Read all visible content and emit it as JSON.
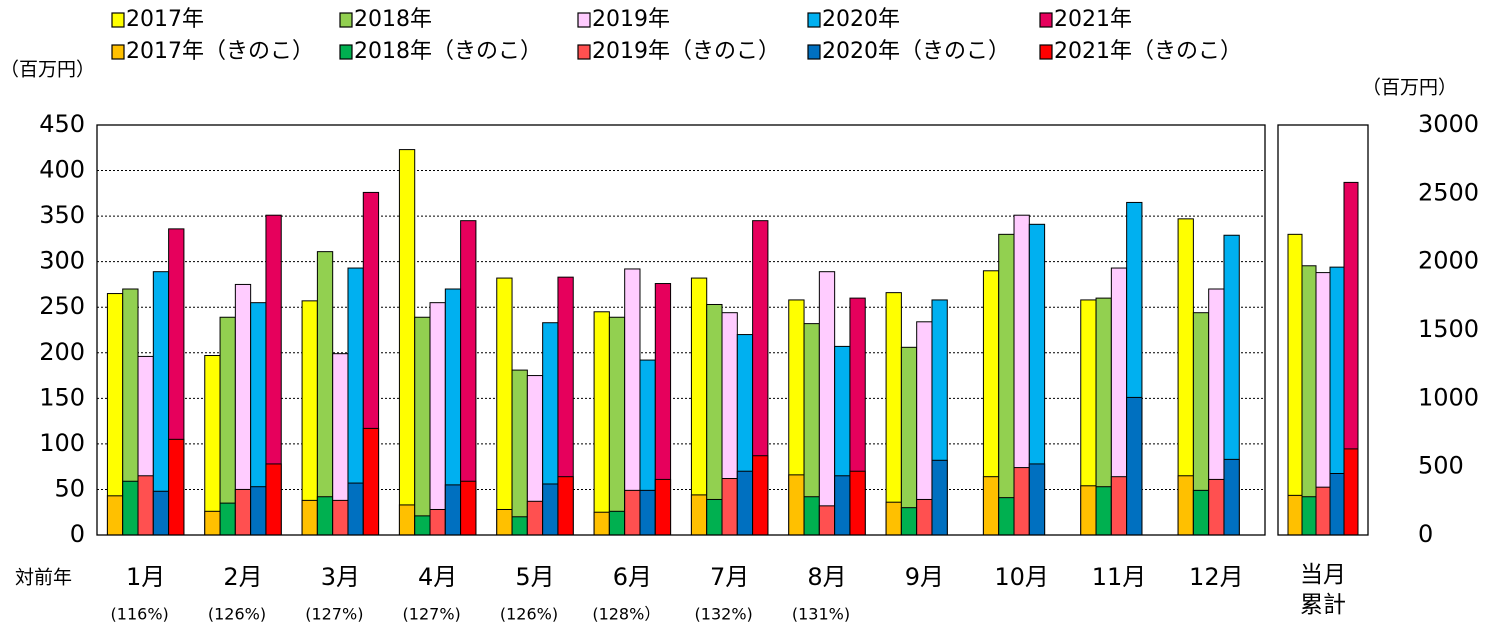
{
  "chart_data": [
    {
      "type": "bar",
      "y_unit": "（百万円）",
      "categories": [
        "1月",
        "2月",
        "3月",
        "4月",
        "5月",
        "6月",
        "7月",
        "8月",
        "9月",
        "10月",
        "11月",
        "12月"
      ],
      "series": [
        {
          "name": "2017年",
          "color": "#ffff00",
          "values": [
            265,
            197,
            257,
            423,
            282,
            245,
            282,
            258,
            266,
            290,
            258,
            347
          ]
        },
        {
          "name": "2018年",
          "color": "#92d050",
          "values": [
            270,
            239,
            311,
            239,
            181,
            239,
            253,
            232,
            206,
            330,
            260,
            244
          ]
        },
        {
          "name": "2019年",
          "color": "#ffccff",
          "values": [
            196,
            275,
            199,
            255,
            175,
            292,
            244,
            289,
            234,
            351,
            293,
            270
          ]
        },
        {
          "name": "2020年",
          "color": "#00b0f0",
          "values": [
            289,
            255,
            293,
            270,
            233,
            192,
            220,
            207,
            258,
            341,
            365,
            329
          ]
        },
        {
          "name": "2021年",
          "color": "#e6005c",
          "values": [
            336,
            351,
            376,
            345,
            283,
            276,
            345,
            260,
            null,
            null,
            null,
            null
          ]
        },
        {
          "name": "2017年（きのこ）",
          "color": "#ffc000",
          "values": [
            43,
            26,
            38,
            33,
            28,
            25,
            44,
            66,
            36,
            64,
            54,
            65
          ]
        },
        {
          "name": "2018年（きのこ）",
          "color": "#00b050",
          "values": [
            59,
            35,
            42,
            21,
            20,
            26,
            39,
            42,
            30,
            41,
            53,
            49
          ]
        },
        {
          "name": "2019年（きのこ）",
          "color": "#ff5050",
          "values": [
            65,
            50,
            38,
            28,
            37,
            49,
            62,
            32,
            39,
            74,
            64,
            61
          ]
        },
        {
          "name": "2020年（きのこ）",
          "color": "#0070c0",
          "values": [
            48,
            53,
            57,
            55,
            56,
            49,
            70,
            65,
            82,
            78,
            151,
            83
          ]
        },
        {
          "name": "2021年（きのこ）",
          "color": "#ff0000",
          "values": [
            105,
            78,
            117,
            59,
            64,
            61,
            87,
            70,
            null,
            null,
            null,
            null
          ]
        }
      ],
      "ylim": [
        0,
        450
      ],
      "yticks": [
        0,
        50,
        100,
        150,
        200,
        250,
        300,
        350,
        400,
        450
      ],
      "grid": true,
      "yoy_title": "対前年",
      "yoy_labels": [
        "(116%)",
        "(126%)",
        "(127%)",
        "(127%)",
        "(126%)",
        "(128%）",
        "(132%)",
        "(131%)"
      ]
    },
    {
      "type": "bar",
      "y_unit": "（百万円）",
      "categories": [
        "当月累計"
      ],
      "series": [
        {
          "name": "2017年",
          "color": "#ffff00",
          "values": [
            2200
          ]
        },
        {
          "name": "2018年",
          "color": "#92d050",
          "values": [
            1970
          ]
        },
        {
          "name": "2019年",
          "color": "#ffccff",
          "values": [
            1920
          ]
        },
        {
          "name": "2020年",
          "color": "#00b0f0",
          "values": [
            1960
          ]
        },
        {
          "name": "2021年",
          "color": "#e6005c",
          "values": [
            2580
          ]
        },
        {
          "name": "2017年（きのこ）",
          "color": "#ffc000",
          "values": [
            290
          ]
        },
        {
          "name": "2018年（きのこ）",
          "color": "#00b050",
          "values": [
            280
          ]
        },
        {
          "name": "2019年（きのこ）",
          "color": "#ff5050",
          "values": [
            350
          ]
        },
        {
          "name": "2020年（きのこ）",
          "color": "#0070c0",
          "values": [
            450
          ]
        },
        {
          "name": "2021年（きのこ）",
          "color": "#ff0000",
          "values": [
            630
          ]
        }
      ],
      "ylim": [
        0,
        3000
      ],
      "yticks": [
        0,
        500,
        1000,
        1500,
        2000,
        2500,
        3000
      ]
    }
  ]
}
